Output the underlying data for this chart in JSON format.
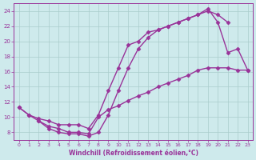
{
  "bg_color": "#ceeaec",
  "grid_color": "#aacccc",
  "line_color": "#993399",
  "marker": "D",
  "markersize": 2.5,
  "linewidth": 1.0,
  "xlabel": "Windchill (Refroidissement éolien,°C)",
  "xlim": [
    -0.5,
    23.5
  ],
  "ylim": [
    7.0,
    25.0
  ],
  "xticks": [
    0,
    1,
    2,
    3,
    4,
    5,
    6,
    7,
    8,
    9,
    10,
    11,
    12,
    13,
    14,
    15,
    16,
    17,
    18,
    19,
    20,
    21,
    22,
    23
  ],
  "yticks": [
    8,
    10,
    12,
    14,
    16,
    18,
    20,
    22,
    24
  ],
  "line1_x": [
    0,
    1,
    2,
    3,
    4,
    5,
    6,
    7,
    8,
    9,
    10,
    11,
    12,
    13,
    14,
    15,
    16,
    17,
    18,
    19,
    20,
    21
  ],
  "line1_y": [
    11.3,
    10.3,
    9.8,
    9.5,
    9.0,
    9.0,
    9.0,
    8.5,
    10.3,
    13.5,
    16.5,
    19.5,
    20.0,
    21.2,
    21.5,
    22.0,
    22.5,
    23.0,
    23.5,
    24.0,
    23.5,
    22.5
  ],
  "line2_x": [
    0,
    1,
    2,
    3,
    4,
    5,
    6,
    7,
    8,
    9,
    10,
    11,
    12,
    13,
    14,
    15,
    16,
    17,
    18,
    19,
    20,
    21,
    22,
    23
  ],
  "line2_y": [
    11.3,
    10.3,
    9.5,
    8.5,
    8.0,
    7.8,
    7.8,
    7.5,
    8.0,
    10.3,
    13.5,
    16.5,
    19.0,
    20.5,
    21.5,
    22.0,
    22.5,
    23.0,
    23.5,
    24.3,
    22.5,
    18.5,
    19.0,
    16.2
  ],
  "line3_x": [
    2,
    3,
    4,
    5,
    6,
    7,
    8,
    9,
    10,
    11,
    12,
    13,
    14,
    15,
    16,
    17,
    18,
    19,
    20,
    21,
    22,
    23
  ],
  "line3_y": [
    9.5,
    8.8,
    8.5,
    8.0,
    8.0,
    7.8,
    10.0,
    11.0,
    11.5,
    12.2,
    12.8,
    13.3,
    14.0,
    14.5,
    15.0,
    15.5,
    16.2,
    16.5,
    16.5,
    16.5,
    16.2,
    16.2
  ]
}
